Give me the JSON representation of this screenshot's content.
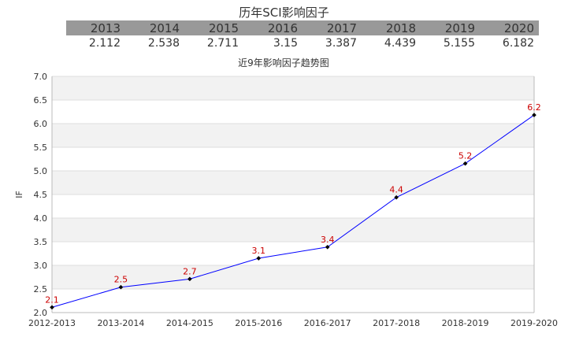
{
  "table": {
    "title": "历年SCI影响因子",
    "years": [
      "2013",
      "2014",
      "2015",
      "2016",
      "2017",
      "2018",
      "2019",
      "2020"
    ],
    "values": [
      "2.112",
      "2.538",
      "2.711",
      "3.15",
      "3.387",
      "4.439",
      "5.155",
      "6.182"
    ]
  },
  "chart_data": {
    "type": "line",
    "title": "近9年影响因子趋势图",
    "xlabel": "",
    "ylabel": "IF",
    "categories": [
      "2012-2013",
      "2013-2014",
      "2014-2015",
      "2015-2016",
      "2016-2017",
      "2017-2018",
      "2018-2019",
      "2019-2020"
    ],
    "series": [
      {
        "values": [
          2.112,
          2.538,
          2.711,
          3.15,
          3.387,
          4.439,
          5.155,
          6.182
        ],
        "labels": [
          "2.1",
          "2.5",
          "2.7",
          "3.1",
          "3.4",
          "4.4",
          "5.2",
          "6.2"
        ],
        "color": "#0000ff",
        "label_color": "#cc0000"
      }
    ],
    "ylim": [
      2.0,
      7.0
    ],
    "yticks": [
      "2.0",
      "2.5",
      "3.0",
      "3.5",
      "4.0",
      "4.5",
      "5.0",
      "5.5",
      "6.0",
      "6.5",
      "7.0"
    ],
    "grid": true
  }
}
